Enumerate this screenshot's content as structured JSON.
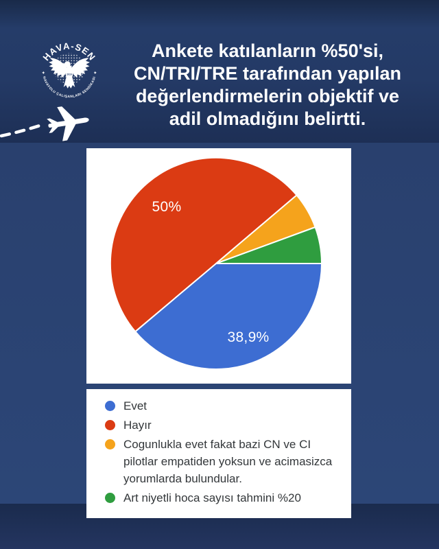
{
  "brand": {
    "background_navy": "#2a4170",
    "card_white": "#ffffff",
    "title_color": "#ffffff"
  },
  "logo": {
    "top_text": "HAVA-SEN",
    "bottom_text": "HAVAYOLU ÇALIŞANLARI SENDİKASI",
    "year": "2016"
  },
  "title": {
    "lines": [
      "Ankete katılanların %50'si,",
      "CN/TRI/TRE tarafından yapılan",
      "değerlendirmelerin objektif ve",
      "adil olmadığını belirtti."
    ]
  },
  "chart_data": {
    "type": "pie",
    "title": "",
    "start_angle_deg": 0,
    "direction": "clockwise",
    "legend_position": "bottom",
    "slices": [
      {
        "label": "Evet",
        "value": 38.9,
        "display": "38,9%",
        "color": "#3d6dd2"
      },
      {
        "label": "Hayır",
        "value": 50.0,
        "display": "50%",
        "color": "#db3b13"
      },
      {
        "label": "Cogunlukla evet fakat bazi CN ve CI pilotlar empatiden yoksun ve acimasizca yorumlarda bulundular.",
        "value": 5.6,
        "display": "",
        "color": "#f5a31c"
      },
      {
        "label": "Art niyetli hoca sayısı tahmini %20",
        "value": 5.6,
        "display": "",
        "color": "#2f9d3f"
      }
    ]
  }
}
